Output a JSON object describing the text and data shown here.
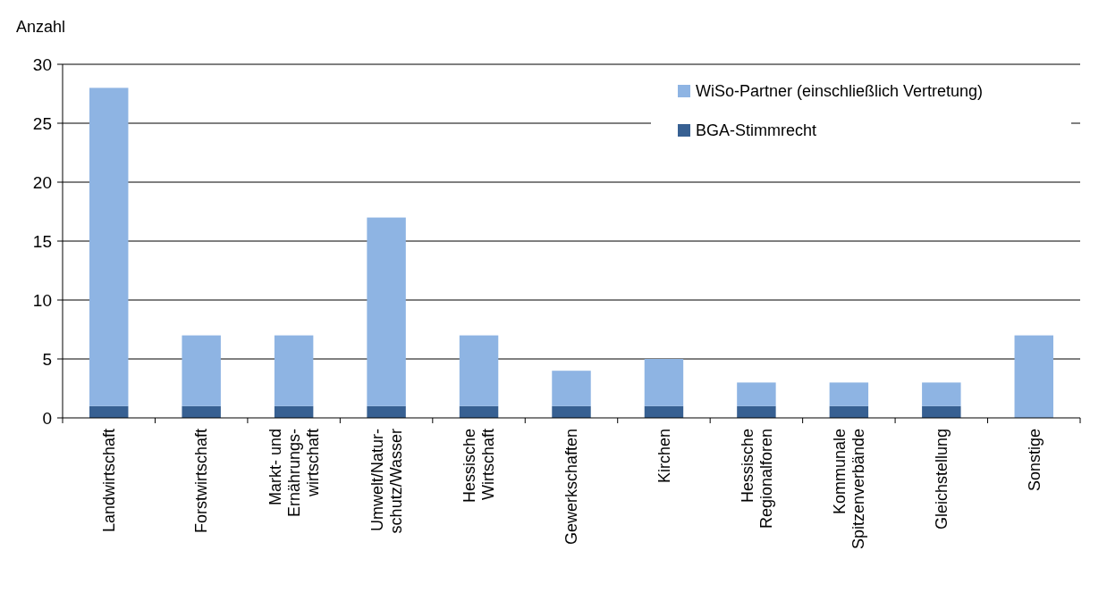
{
  "chart_data": {
    "type": "bar",
    "ylabel": "Anzahl",
    "stacked": true,
    "grid": "y",
    "legend": "top right",
    "categories": [
      "Landwirtschaft",
      "Forstwirtschaft",
      "Markt- und\nErnährungs-\nwirtschaft",
      "Umwelt/Natur-\nschutz/Wasser",
      "Hessische\nWirtschaft",
      "Gewerkschaften",
      "Kirchen",
      "Hessische\nRegionalforen",
      "Kommunale\nSpitzenverbände",
      "Gleichstellung",
      "Sonstige"
    ],
    "series": [
      {
        "name": "BGA-Stimmrecht",
        "color": "#376092",
        "values": [
          1,
          1,
          1,
          1,
          1,
          1,
          1,
          1,
          1,
          1,
          0
        ]
      },
      {
        "name": "WiSo-Partner (einschließlich Vertretung)",
        "color": "#8eb4e3",
        "values": [
          27,
          6,
          6,
          16,
          6,
          3,
          4,
          2,
          2,
          2,
          7
        ]
      }
    ],
    "ylim": [
      0,
      30
    ],
    "yticks": [
      0,
      5,
      10,
      15,
      20,
      25,
      30
    ]
  }
}
